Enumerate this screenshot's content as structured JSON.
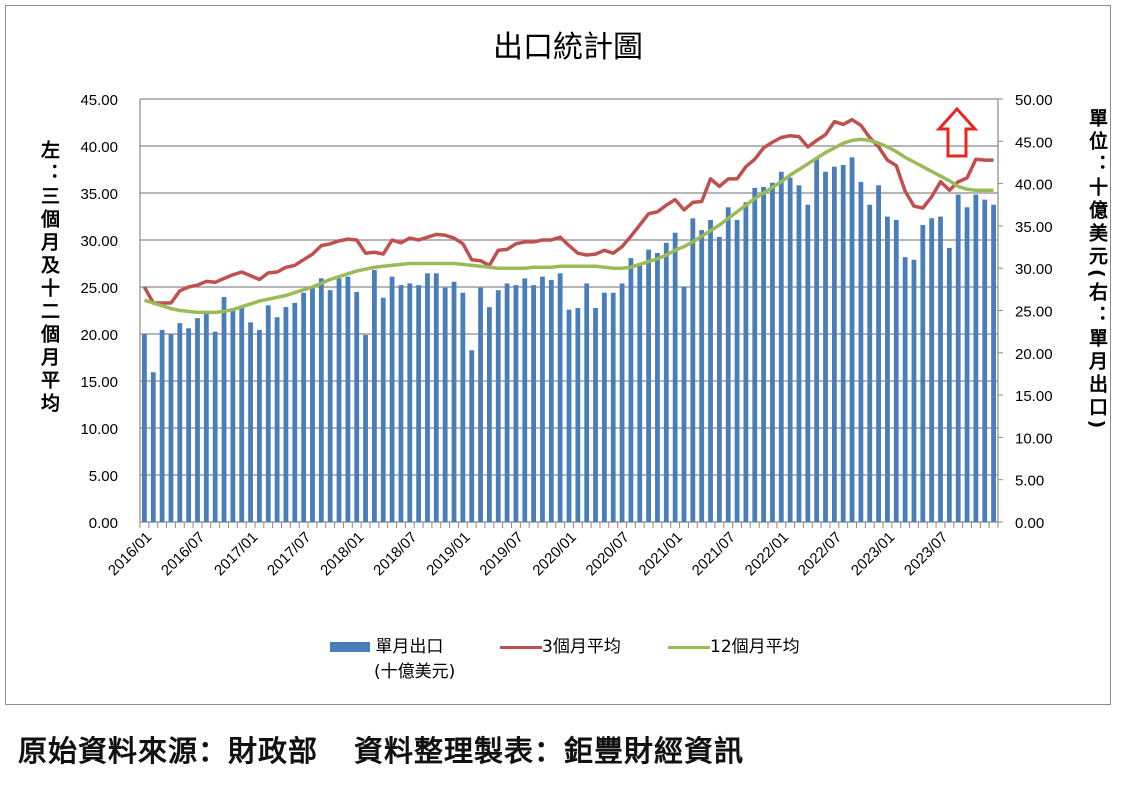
{
  "chart_data": {
    "type": "bar+line",
    "title": "出口統計圖",
    "left_axis_label": "左：三個月及十二個月平均",
    "right_axis_label": "單位：十億美元(右：單月出口)",
    "left_ylim": [
      0,
      45
    ],
    "right_ylim": [
      0,
      50
    ],
    "left_ticks": [
      "0.00",
      "5.00",
      "10.00",
      "15.00",
      "20.00",
      "25.00",
      "30.00",
      "35.00",
      "40.00",
      "45.00"
    ],
    "right_ticks": [
      "0.00",
      "5.00",
      "10.00",
      "15.00",
      "20.00",
      "25.00",
      "30.00",
      "35.00",
      "40.00",
      "45.00",
      "50.00"
    ],
    "x_start": "2016/01",
    "x_tick_labels": [
      "2016/01",
      "2016/07",
      "2017/01",
      "2017/07",
      "2018/01",
      "2018/07",
      "2019/01",
      "2019/07",
      "2020/01",
      "2020/07",
      "2021/01",
      "2021/07",
      "2022/01",
      "2022/07",
      "2023/01",
      "2023/07"
    ],
    "grid": "horizontal",
    "legend_position": "bottom",
    "series": [
      {
        "name": "單月出口",
        "name_line2": "(十億美元)",
        "type": "bar",
        "axis": "right",
        "color": "#4a7ebb",
        "values": [
          22.2,
          17.7,
          22.7,
          22.2,
          23.5,
          22.9,
          24.1,
          24.7,
          22.5,
          26.6,
          25.3,
          25.6,
          23.6,
          22.7,
          25.6,
          24.2,
          25.4,
          25.9,
          27.1,
          27.7,
          28.8,
          27.4,
          28.8,
          29.0,
          27.2,
          22.1,
          29.8,
          26.5,
          29.0,
          28.0,
          28.2,
          28.0,
          29.4,
          29.4,
          27.7,
          28.4,
          27.1,
          20.3,
          27.7,
          25.4,
          27.4,
          28.2,
          28.0,
          28.8,
          28.0,
          29.0,
          28.6,
          29.4,
          25.1,
          25.3,
          28.2,
          25.3,
          27.1,
          27.1,
          28.2,
          31.2,
          30.6,
          32.2,
          31.8,
          33.0,
          34.2,
          27.8,
          35.9,
          34.5,
          35.7,
          33.7,
          37.2,
          35.7,
          37.8,
          39.5,
          39.6,
          40.1,
          41.4,
          40.7,
          39.8,
          37.5,
          43.1,
          41.4,
          42.0,
          42.2,
          43.1,
          40.2,
          37.5,
          39.8,
          36.1,
          35.7,
          31.3,
          31.0,
          35.1,
          35.9,
          36.1,
          32.4,
          38.7,
          37.2,
          38.7,
          38.1,
          37.5
        ]
      },
      {
        "name": "3個月平均",
        "type": "line",
        "axis": "left",
        "color": "#c0504d",
        "values": [
          25.0,
          23.3,
          23.3,
          23.3,
          24.6,
          25.0,
          25.2,
          25.6,
          25.5,
          25.9,
          26.3,
          26.6,
          26.2,
          25.8,
          26.5,
          26.6,
          27.1,
          27.3,
          27.9,
          28.5,
          29.4,
          29.6,
          29.9,
          30.1,
          30.0,
          28.6,
          28.7,
          28.5,
          30.0,
          29.7,
          30.2,
          30.0,
          30.3,
          30.6,
          30.5,
          30.2,
          29.6,
          27.9,
          27.8,
          27.3,
          28.9,
          29.0,
          29.6,
          29.8,
          29.8,
          30.0,
          30.0,
          30.3,
          29.4,
          28.6,
          28.4,
          28.5,
          28.9,
          28.6,
          29.3,
          30.4,
          31.6,
          32.8,
          33.0,
          33.7,
          34.3,
          33.2,
          34.0,
          34.1,
          36.5,
          35.7,
          36.5,
          36.5,
          37.8,
          38.6,
          39.8,
          40.4,
          40.9,
          41.1,
          41.0,
          39.9,
          40.6,
          41.2,
          42.6,
          42.3,
          42.8,
          42.2,
          40.9,
          39.9,
          38.5,
          37.9,
          35.2,
          33.6,
          33.4,
          34.6,
          36.2,
          35.3,
          36.2,
          36.6,
          38.6,
          38.5,
          38.5
        ]
      },
      {
        "name": "12個月平均",
        "type": "line",
        "axis": "left",
        "color": "#9bbb59",
        "values": [
          23.6,
          23.3,
          23.0,
          22.7,
          22.5,
          22.4,
          22.3,
          22.3,
          22.3,
          22.4,
          22.6,
          22.9,
          23.2,
          23.5,
          23.7,
          23.9,
          24.1,
          24.4,
          24.7,
          25.0,
          25.4,
          25.8,
          26.1,
          26.4,
          26.7,
          26.9,
          27.1,
          27.2,
          27.3,
          27.4,
          27.5,
          27.5,
          27.5,
          27.5,
          27.5,
          27.5,
          27.4,
          27.3,
          27.2,
          27.1,
          27.0,
          27.0,
          27.0,
          27.0,
          27.1,
          27.1,
          27.1,
          27.2,
          27.2,
          27.2,
          27.2,
          27.2,
          27.1,
          27.0,
          27.0,
          27.1,
          27.4,
          27.7,
          28.0,
          28.4,
          28.9,
          29.3,
          29.8,
          30.4,
          31.0,
          31.6,
          32.3,
          33.0,
          33.7,
          34.4,
          35.0,
          35.6,
          36.2,
          36.9,
          37.5,
          38.1,
          38.7,
          39.3,
          39.8,
          40.3,
          40.6,
          40.7,
          40.6,
          40.3,
          39.9,
          39.4,
          38.8,
          38.3,
          37.8,
          37.3,
          36.8,
          36.3,
          35.7,
          35.4,
          35.3,
          35.3,
          35.3
        ]
      }
    ],
    "annotation": "up-arrow"
  },
  "caption": {
    "source": "原始資料來源：財政部",
    "maker": "資料整理製表：鉅豐財經資訊"
  }
}
